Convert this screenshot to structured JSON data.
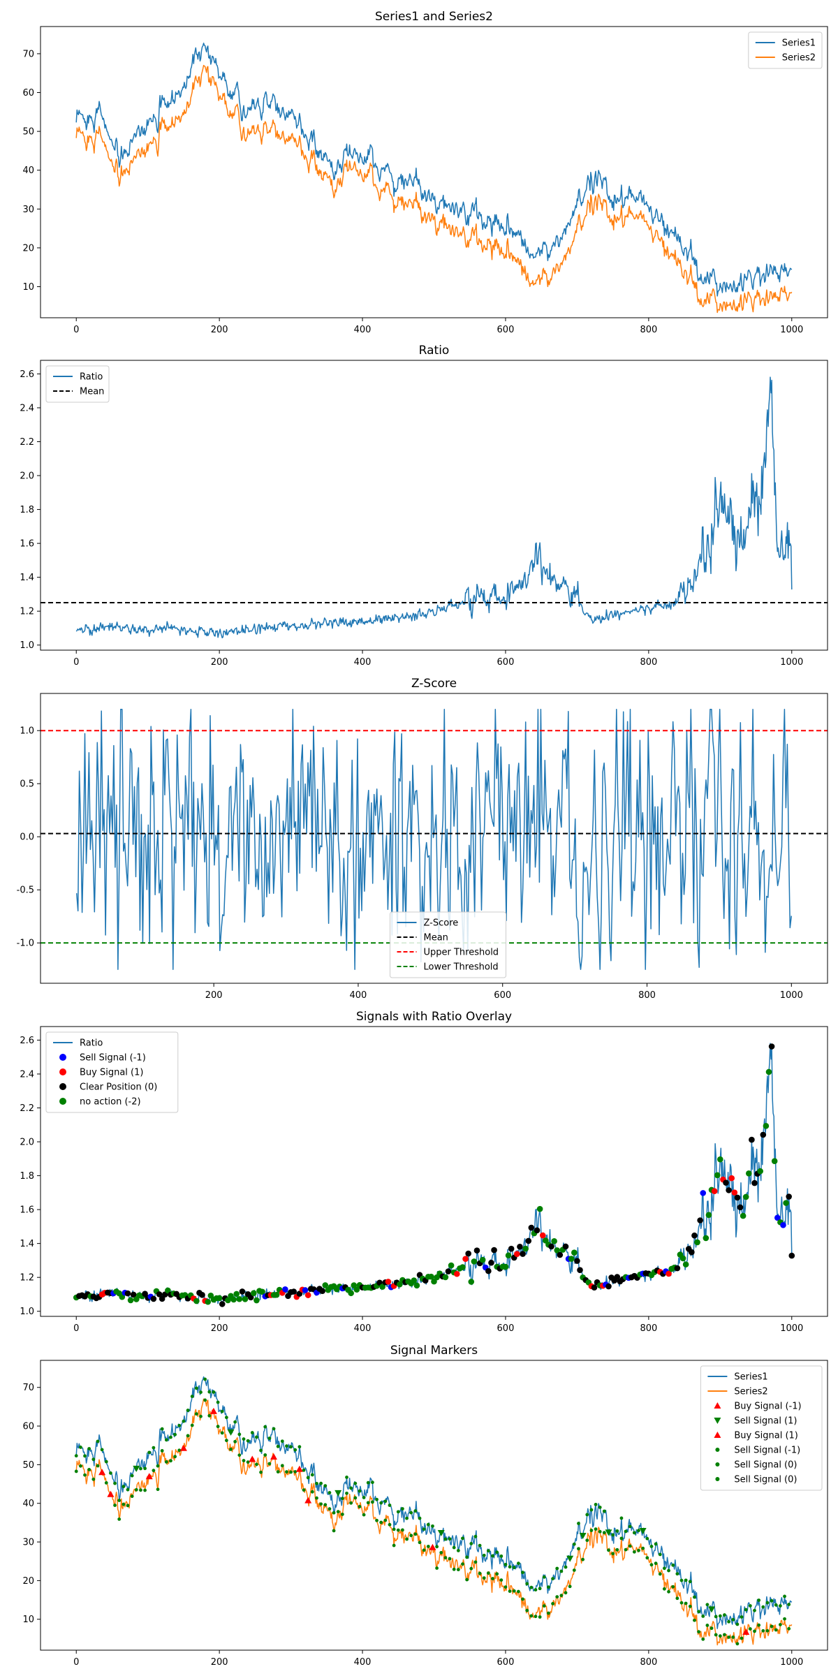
{
  "colors": {
    "series1": "#1f77b4",
    "series2": "#ff7f0e",
    "mean": "#000000",
    "upper": "#ff0000",
    "lower": "#008000",
    "sell_marker": "#0000ff",
    "buy_marker": "#ff0000",
    "clear_marker": "#000000",
    "noaction_marker": "#008000"
  },
  "chart_data": [
    {
      "type": "line",
      "title": "Series1 and Series2",
      "xlim": [
        -50,
        1050
      ],
      "ylim": [
        2,
        77
      ],
      "xticks": [
        0,
        200,
        400,
        600,
        800,
        1000
      ],
      "yticks": [
        10,
        20,
        30,
        40,
        50,
        60,
        70
      ],
      "legend_position": "upper-right",
      "series": [
        {
          "name": "Series1",
          "color": "#1f77b4",
          "x": [
            0,
            30,
            60,
            90,
            120,
            150,
            180,
            210,
            240,
            270,
            300,
            330,
            360,
            390,
            420,
            450,
            480,
            510,
            540,
            570,
            600,
            630,
            660,
            690,
            720,
            750,
            780,
            810,
            840,
            870,
            900,
            930,
            960,
            990,
            1000
          ],
          "y": [
            51,
            57,
            42,
            50,
            57,
            62,
            72,
            62,
            56,
            56,
            53,
            47,
            41,
            43,
            41,
            38,
            36,
            30,
            29,
            27,
            26,
            20,
            18,
            26,
            38,
            33,
            34,
            28,
            22,
            14,
            11,
            10,
            13,
            14,
            16
          ]
        },
        {
          "name": "Series2",
          "color": "#ff7f0e",
          "x": [
            0,
            30,
            60,
            90,
            120,
            150,
            180,
            210,
            240,
            270,
            300,
            330,
            360,
            390,
            420,
            450,
            480,
            510,
            540,
            570,
            600,
            630,
            660,
            690,
            720,
            750,
            780,
            810,
            840,
            870,
            900,
            930,
            960,
            990,
            1000
          ],
          "y": [
            47,
            51,
            37,
            45,
            51,
            55,
            66,
            57,
            50,
            49,
            47,
            42,
            36,
            40,
            36,
            33,
            30,
            25,
            23,
            21,
            20,
            13,
            11,
            19,
            32,
            28,
            29,
            23,
            16,
            8,
            6,
            5,
            7,
            8,
            10
          ]
        }
      ]
    },
    {
      "type": "line",
      "title": "Ratio",
      "xlim": [
        -50,
        1050
      ],
      "ylim": [
        0.97,
        2.68
      ],
      "xticks": [
        0,
        200,
        400,
        600,
        800,
        1000
      ],
      "yticks": [
        1.0,
        1.2,
        1.4,
        1.6,
        1.8,
        2.0,
        2.2,
        2.4,
        2.6
      ],
      "legend_position": "upper-left",
      "hlines": [
        {
          "name": "Mean",
          "value": 1.25,
          "color": "#000000"
        }
      ],
      "series": [
        {
          "name": "Ratio",
          "color": "#1f77b4",
          "x": [
            0,
            50,
            100,
            150,
            200,
            250,
            300,
            350,
            400,
            450,
            500,
            550,
            600,
            630,
            645,
            660,
            690,
            720,
            750,
            800,
            840,
            870,
            900,
            930,
            960,
            970,
            980,
            1000
          ],
          "y": [
            1.09,
            1.11,
            1.09,
            1.09,
            1.07,
            1.1,
            1.11,
            1.13,
            1.14,
            1.16,
            1.2,
            1.26,
            1.3,
            1.4,
            1.65,
            1.4,
            1.33,
            1.15,
            1.17,
            1.22,
            1.25,
            1.45,
            1.8,
            1.7,
            1.85,
            2.55,
            1.55,
            1.6
          ]
        }
      ]
    },
    {
      "type": "line",
      "title": "Z-Score",
      "xlim": [
        -40,
        1050
      ],
      "ylim": [
        -1.38,
        1.35
      ],
      "xticks": [
        200,
        400,
        600,
        800,
        1000
      ],
      "yticks": [
        -1.0,
        -0.5,
        0.0,
        0.5,
        1.0
      ],
      "legend_position": "lower-center",
      "hlines": [
        {
          "name": "Mean",
          "value": 0.03,
          "color": "#000000"
        },
        {
          "name": "Upper Threshold",
          "value": 1.0,
          "color": "#ff0000"
        },
        {
          "name": "Lower Threshold",
          "value": -1.0,
          "color": "#008000"
        }
      ],
      "series": [
        {
          "name": "Z-Score",
          "color": "#1f77b4",
          "x_start": 10,
          "x_end": 1000,
          "n_points": 520
        }
      ]
    },
    {
      "type": "scatter",
      "title": "Signals with Ratio Overlay",
      "xlim": [
        -50,
        1050
      ],
      "ylim": [
        0.97,
        2.68
      ],
      "xticks": [
        0,
        200,
        400,
        600,
        800,
        1000
      ],
      "yticks": [
        1.0,
        1.2,
        1.4,
        1.6,
        1.8,
        2.0,
        2.2,
        2.4,
        2.6
      ],
      "legend_position": "upper-left",
      "series": [
        {
          "name": "Ratio",
          "color": "#1f77b4",
          "kind": "line"
        },
        {
          "name": "Sell Signal (-1)",
          "color": "#0000ff",
          "kind": "dots"
        },
        {
          "name": "Buy Signal (1)",
          "color": "#ff0000",
          "kind": "dots"
        },
        {
          "name": "Clear Position (0)",
          "color": "#000000",
          "kind": "dots"
        },
        {
          "name": "no action (-2)",
          "color": "#008000",
          "kind": "dots"
        }
      ]
    },
    {
      "type": "line",
      "title": "Signal Markers",
      "xlim": [
        -50,
        1050
      ],
      "ylim": [
        2,
        77
      ],
      "xticks": [
        0,
        200,
        400,
        600,
        800,
        1000
      ],
      "yticks": [
        10,
        20,
        30,
        40,
        50,
        60,
        70
      ],
      "legend_position": "upper-right",
      "series": [
        {
          "name": "Series1",
          "color": "#1f77b4",
          "kind": "line"
        },
        {
          "name": "Series2",
          "color": "#ff7f0e",
          "kind": "line"
        },
        {
          "name": "Buy Signal (-1)",
          "color": "#ff0000",
          "kind": "triangle-up"
        },
        {
          "name": "Sell Signal (1)",
          "color": "#008000",
          "kind": "triangle-down"
        },
        {
          "name": "Buy Signal (1)",
          "color": "#ff0000",
          "kind": "triangle-up"
        },
        {
          "name": "Sell Signal (-1)",
          "color": "#008000",
          "kind": "small-dot"
        },
        {
          "name": "Sell Signal (0)",
          "color": "#008000",
          "kind": "small-dot"
        },
        {
          "name": "Sell Signal (0)",
          "color": "#008000",
          "kind": "small-dot"
        }
      ]
    }
  ]
}
